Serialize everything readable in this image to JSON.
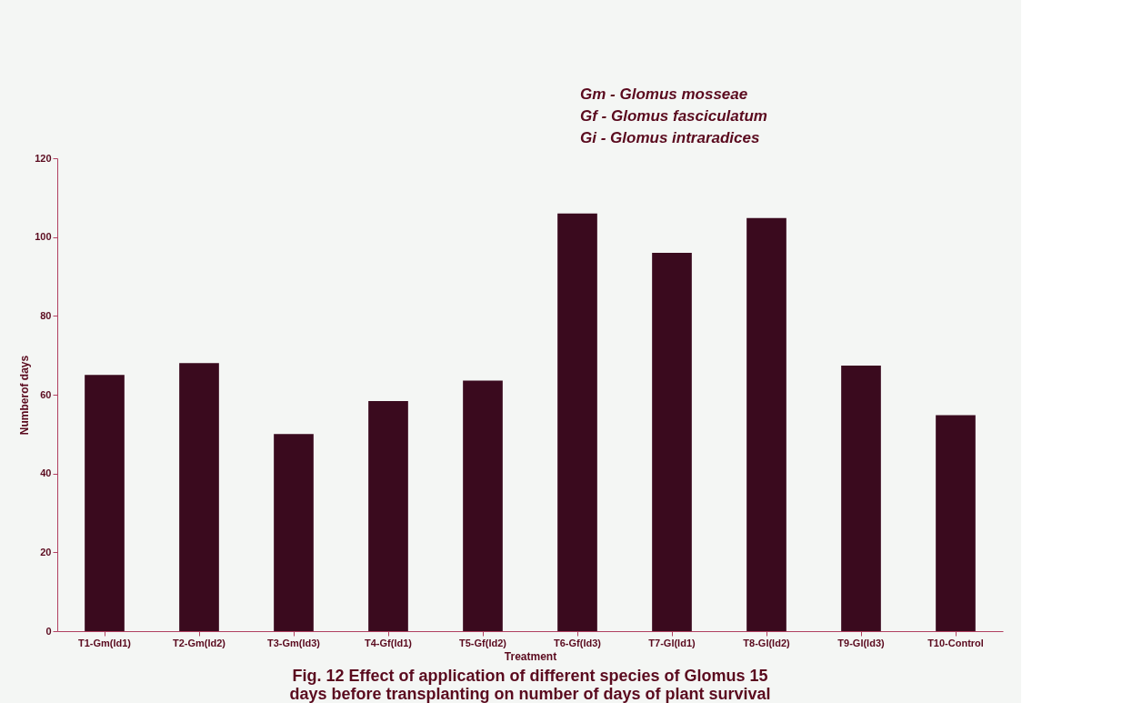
{
  "chart_data": {
    "type": "bar",
    "title": "Fig. 12 Effect of application of different species of Glomus 15 days before transplanting on number of days of plant survival",
    "xlabel": "Treatment",
    "ylabel": "Numberof days",
    "categories": [
      "T1-Gm(Id1)",
      "T2-Gm(Id2)",
      "T3-Gm(Id3)",
      "T4-Gf(Id1)",
      "T5-Gf(Id2)",
      "T6-Gf(Id3)",
      "T7-GI(Id1)",
      "T8-GI(Id2)",
      "T9-GI(Id3)",
      "T10-Control"
    ],
    "values": [
      65,
      68,
      50,
      58.4,
      63.6,
      106,
      96,
      104.8,
      67.4,
      54.8
    ],
    "color": "#3a0a1e",
    "ylim": [
      0,
      120
    ],
    "yticks": [
      0,
      20,
      40,
      60,
      80,
      100,
      120
    ],
    "grid": false,
    "annotations": [
      "Gm - Glomus mosseae",
      "Gf - Glomus fasciculatum",
      "Gi - Glomus intraradices"
    ]
  }
}
